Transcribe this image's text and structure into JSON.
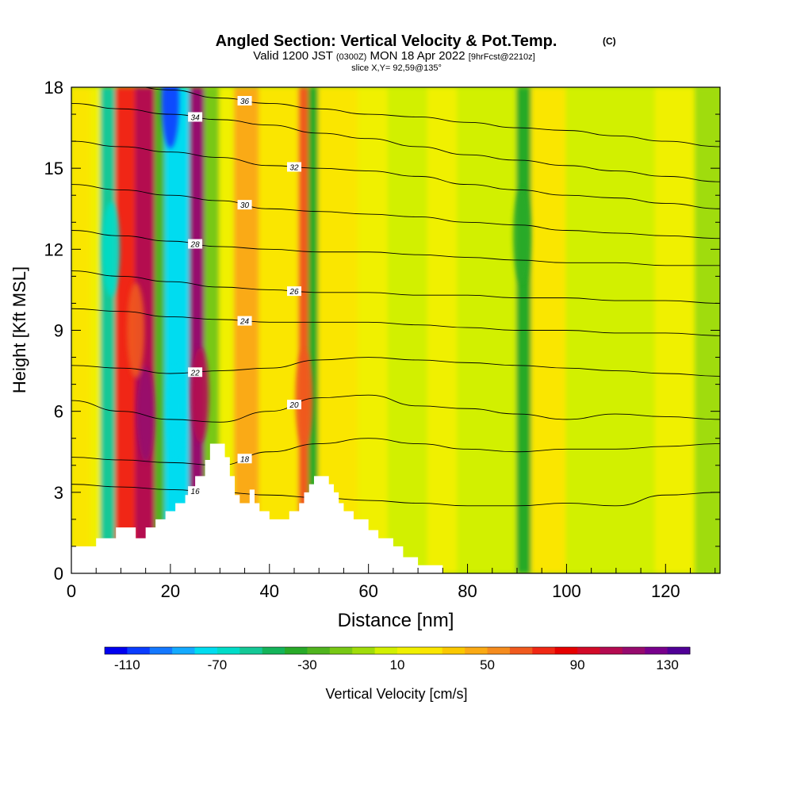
{
  "header": {
    "title": "Angled Section: Vertical Velocity & Pot.Temp.",
    "title_suffix": "(C)",
    "valid_line_a": "Valid 1200 JST",
    "valid_line_b": "(0300Z)",
    "valid_line_c": "MON 18 Apr 2022",
    "valid_line_d": "[9hrFcst@2210z]",
    "slice_line": "slice X,Y= 92,59@135°"
  },
  "axes": {
    "xlabel": "Distance [nm]",
    "ylabel": "Height [Kft MSL]",
    "xlim": [
      0,
      131
    ],
    "ylim": [
      0,
      18
    ],
    "xticks": [
      0,
      20,
      40,
      60,
      80,
      100,
      120
    ],
    "xtick_labels": [
      "0",
      "20",
      "40",
      "60",
      "80",
      "100",
      "120"
    ],
    "yticks": [
      0,
      3,
      6,
      9,
      12,
      15,
      18
    ],
    "ytick_labels": [
      "0",
      "3",
      "6",
      "9",
      "12",
      "15",
      "18"
    ]
  },
  "colorbar": {
    "label": "Vertical Velocity [cm/s]",
    "min": -120,
    "max": 140,
    "step": 10,
    "colors": [
      "#0000f0",
      "#0a3cff",
      "#1478ff",
      "#14aaff",
      "#00dcf0",
      "#00dcc8",
      "#14c896",
      "#14b45a",
      "#28aa28",
      "#50b41e",
      "#78c814",
      "#a0dc0a",
      "#d2f000",
      "#f0f000",
      "#fae600",
      "#fac800",
      "#faaa14",
      "#f58c1e",
      "#f05a1e",
      "#f02814",
      "#e60000",
      "#d20a28",
      "#b40a50",
      "#960a6e",
      "#78008c",
      "#500096"
    ],
    "tick_values": [
      -110,
      -70,
      -30,
      10,
      50,
      90,
      130
    ],
    "tick_labels": [
      "-110",
      "-70",
      "-30",
      "10",
      "50",
      "90",
      "130"
    ]
  },
  "chart_data": {
    "type": "heatmap",
    "title": "Angled Section: Vertical Velocity & Pot.Temp.",
    "xlabel": "Distance [nm]",
    "ylabel": "Height [Kft MSL]",
    "field": "Vertical Velocity [cm/s]",
    "contour_field": "Potential temperature (C)",
    "columns": [
      {
        "x": [
          0,
          4
        ],
        "mean_w": 25
      },
      {
        "x": [
          4,
          6
        ],
        "mean_w": 15
      },
      {
        "x": [
          6,
          9
        ],
        "mean_w": -55
      },
      {
        "x": [
          9,
          13
        ],
        "mean_w": 70
      },
      {
        "x": [
          13,
          17
        ],
        "mean_w": 100
      },
      {
        "x": [
          17,
          19
        ],
        "mean_w": -30
      },
      {
        "x": [
          19,
          24
        ],
        "mean_w": -75
      },
      {
        "x": [
          24,
          27
        ],
        "mean_w": 110
      },
      {
        "x": [
          27,
          30
        ],
        "mean_w": -15
      },
      {
        "x": [
          30,
          33
        ],
        "mean_w": 15
      },
      {
        "x": [
          33,
          38
        ],
        "mean_w": 40
      },
      {
        "x": [
          38,
          46
        ],
        "mean_w": 25
      },
      {
        "x": [
          46,
          48
        ],
        "mean_w": 60
      },
      {
        "x": [
          48,
          50
        ],
        "mean_w": -35
      },
      {
        "x": [
          50,
          58
        ],
        "mean_w": 20
      },
      {
        "x": [
          58,
          64
        ],
        "mean_w": 10
      },
      {
        "x": [
          64,
          72
        ],
        "mean_w": 0
      },
      {
        "x": [
          72,
          78
        ],
        "mean_w": 10
      },
      {
        "x": [
          78,
          85
        ],
        "mean_w": 5
      },
      {
        "x": [
          85,
          90
        ],
        "mean_w": 0
      },
      {
        "x": [
          90,
          93
        ],
        "mean_w": -35
      },
      {
        "x": [
          93,
          100
        ],
        "mean_w": 20
      },
      {
        "x": [
          100,
          110
        ],
        "mean_w": 5
      },
      {
        "x": [
          110,
          118
        ],
        "mean_w": 0
      },
      {
        "x": [
          118,
          126
        ],
        "mean_w": 10
      },
      {
        "x": [
          126,
          131
        ],
        "mean_w": -10
      }
    ],
    "cores": [
      {
        "x": 15,
        "y": 5.9,
        "w": 110
      },
      {
        "x": 26,
        "y": 6.6,
        "w": 100
      },
      {
        "x": 13,
        "y": 9.0,
        "w": 60
      },
      {
        "x": 20,
        "y": 17.5,
        "w": -110
      },
      {
        "x": 21,
        "y": 6.0,
        "w": -80
      },
      {
        "x": 8,
        "y": 12.0,
        "w": -70
      },
      {
        "x": 47,
        "y": 6.5,
        "w": 60
      },
      {
        "x": 91,
        "y": 12.5,
        "w": -40
      }
    ],
    "terrain": [
      [
        0,
        1
      ],
      [
        5,
        1
      ],
      [
        5,
        1.3
      ],
      [
        9,
        1.3
      ],
      [
        9,
        1.7
      ],
      [
        13,
        1.7
      ],
      [
        13,
        1.3
      ],
      [
        15,
        1.3
      ],
      [
        15,
        1.7
      ],
      [
        17,
        1.7
      ],
      [
        17,
        2
      ],
      [
        19,
        2
      ],
      [
        19,
        2.3
      ],
      [
        21,
        2.3
      ],
      [
        21,
        2.6
      ],
      [
        23,
        2.6
      ],
      [
        23,
        2.9
      ],
      [
        25,
        2.9
      ],
      [
        25,
        3.6
      ],
      [
        27,
        3.6
      ],
      [
        27,
        4.2
      ],
      [
        28,
        4.2
      ],
      [
        28,
        4.8
      ],
      [
        31,
        4.8
      ],
      [
        31,
        4.3
      ],
      [
        32,
        4.3
      ],
      [
        32,
        3.6
      ],
      [
        33,
        3.6
      ],
      [
        33,
        2.9
      ],
      [
        34,
        2.9
      ],
      [
        34,
        2.6
      ],
      [
        36,
        2.6
      ],
      [
        36,
        3.1
      ],
      [
        37,
        3.1
      ],
      [
        37,
        2.6
      ],
      [
        38,
        2.6
      ],
      [
        38,
        2.3
      ],
      [
        40,
        2.3
      ],
      [
        40,
        2.0
      ],
      [
        44,
        2.0
      ],
      [
        44,
        2.3
      ],
      [
        46,
        2.3
      ],
      [
        46,
        2.6
      ],
      [
        47,
        2.6
      ],
      [
        47,
        3.0
      ],
      [
        48,
        3.0
      ],
      [
        48,
        3.3
      ],
      [
        49,
        3.3
      ],
      [
        49,
        3.6
      ],
      [
        52,
        3.6
      ],
      [
        52,
        3.3
      ],
      [
        53,
        3.3
      ],
      [
        53,
        3.0
      ],
      [
        54,
        3.0
      ],
      [
        54,
        2.6
      ],
      [
        55,
        2.6
      ],
      [
        55,
        2.3
      ],
      [
        57,
        2.3
      ],
      [
        57,
        2.0
      ],
      [
        60,
        2.0
      ],
      [
        60,
        1.6
      ],
      [
        62,
        1.6
      ],
      [
        62,
        1.3
      ],
      [
        65,
        1.3
      ],
      [
        65,
        1.0
      ],
      [
        67,
        1.0
      ],
      [
        67,
        0.6
      ],
      [
        70,
        0.6
      ],
      [
        70,
        0.3
      ],
      [
        75,
        0.3
      ],
      [
        75,
        0
      ],
      [
        0,
        0
      ]
    ],
    "isentropes": [
      {
        "value": 16,
        "y": [
          3.3,
          3.2,
          3.1,
          3.0,
          2.9,
          2.8,
          2.7,
          2.6,
          2.5,
          2.5,
          2.6,
          2.5,
          2.9,
          3.0
        ]
      },
      {
        "value": 18,
        "y": [
          4.3,
          4.2,
          4.1,
          4.0,
          4.5,
          4.8,
          5.0,
          4.8,
          4.6,
          4.5,
          4.6,
          4.6,
          4.7,
          4.8
        ]
      },
      {
        "value": 20,
        "y": [
          6.4,
          6.0,
          5.7,
          5.6,
          6.0,
          6.5,
          6.6,
          6.2,
          6.1,
          5.9,
          5.7,
          5.9,
          5.8,
          5.7
        ]
      },
      {
        "value": 22,
        "y": [
          7.7,
          7.6,
          7.4,
          7.5,
          7.6,
          7.9,
          8.0,
          7.9,
          7.8,
          7.7,
          7.6,
          7.5,
          7.4,
          7.3
        ]
      },
      {
        "value": 24,
        "y": [
          9.8,
          9.7,
          9.5,
          9.4,
          9.3,
          9.3,
          9.3,
          9.2,
          9.1,
          9.0,
          9.0,
          8.9,
          8.9,
          8.8
        ]
      },
      {
        "value": 26,
        "y": [
          11.2,
          11.0,
          10.8,
          10.6,
          10.5,
          10.4,
          10.4,
          10.3,
          10.3,
          10.2,
          10.2,
          10.1,
          10.1,
          10.0
        ]
      },
      {
        "value": 28,
        "y": [
          12.7,
          12.5,
          12.3,
          12.1,
          12.0,
          11.9,
          11.9,
          11.8,
          11.7,
          11.6,
          11.5,
          11.5,
          11.4,
          11.4
        ]
      },
      {
        "value": 30,
        "y": [
          14.4,
          14.2,
          14.0,
          13.8,
          13.5,
          13.4,
          13.3,
          13.2,
          13.0,
          12.9,
          12.7,
          12.6,
          12.5,
          12.4
        ]
      },
      {
        "value": 32,
        "y": [
          16.0,
          15.8,
          15.6,
          15.4,
          15.1,
          15.0,
          14.9,
          14.7,
          14.4,
          14.2,
          14.0,
          13.9,
          13.7,
          13.5
        ]
      },
      {
        "value": 34,
        "y": [
          17.4,
          17.2,
          17.0,
          16.8,
          16.6,
          16.3,
          16.1,
          15.8,
          15.5,
          15.3,
          15.1,
          14.9,
          14.7,
          14.5
        ]
      },
      {
        "value": 36,
        "y": [
          18.3,
          18.1,
          17.9,
          17.6,
          17.4,
          17.2,
          17.0,
          16.9,
          16.7,
          16.5,
          16.4,
          16.2,
          16.0,
          15.8
        ]
      }
    ],
    "isentrope_x": [
      0,
      10,
      20,
      30,
      40,
      50,
      60,
      70,
      80,
      90,
      100,
      110,
      120,
      131
    ]
  }
}
